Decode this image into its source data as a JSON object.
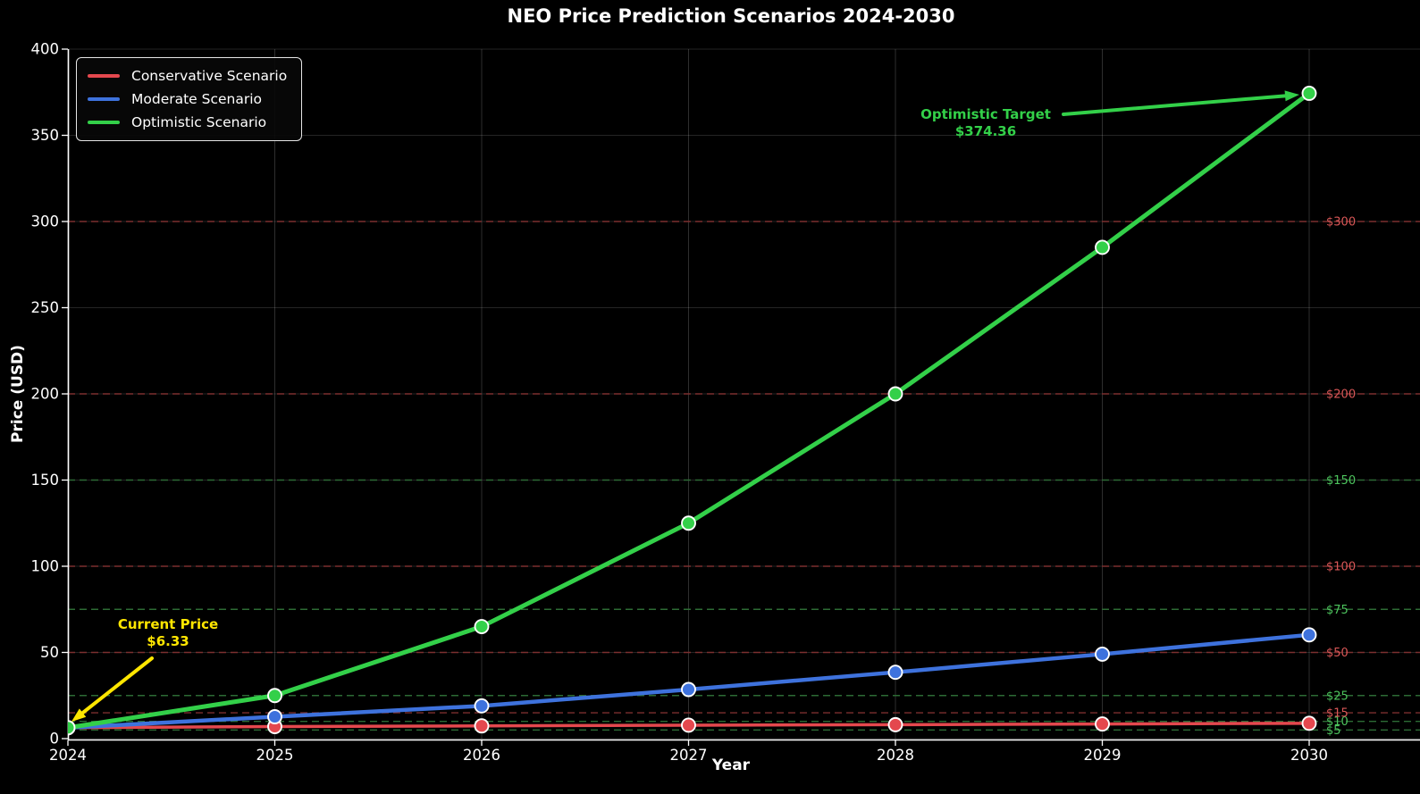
{
  "chart_data": {
    "type": "line",
    "title": "NEO Price Prediction Scenarios 2024-2030",
    "xlabel": "Year",
    "ylabel": "Price (USD)",
    "x": [
      2024,
      2025,
      2026,
      2027,
      2028,
      2029,
      2030
    ],
    "ylim": [
      0,
      400
    ],
    "yticks": [
      0,
      50,
      100,
      150,
      200,
      250,
      300,
      350,
      400
    ],
    "grid": true,
    "legend_position": "upper left",
    "background": "#000000",
    "series": [
      {
        "name": "Conservative Scenario",
        "color": "#e4484e",
        "values": [
          6.33,
          7.0,
          7.4,
          7.8,
          8.1,
          8.5,
          8.9
        ]
      },
      {
        "name": "Moderate Scenario",
        "color": "#3e72dd",
        "values": [
          6.33,
          12.7,
          19.0,
          28.5,
          38.5,
          49.0,
          60.2
        ]
      },
      {
        "name": "Optimistic Scenario",
        "color": "#33d049",
        "values": [
          6.33,
          25.0,
          65.0,
          125.0,
          200.0,
          285.0,
          374.36
        ]
      }
    ],
    "levels": [
      {
        "label": "$5",
        "value": 5,
        "kind": "support"
      },
      {
        "label": "$10",
        "value": 10,
        "kind": "support"
      },
      {
        "label": "$15",
        "value": 15,
        "kind": "resistance"
      },
      {
        "label": "$25",
        "value": 25,
        "kind": "support"
      },
      {
        "label": "$50",
        "value": 50,
        "kind": "resistance"
      },
      {
        "label": "$75",
        "value": 75,
        "kind": "support"
      },
      {
        "label": "$100",
        "value": 100,
        "kind": "resistance"
      },
      {
        "label": "$150",
        "value": 150,
        "kind": "support"
      },
      {
        "label": "$200",
        "value": 200,
        "kind": "resistance"
      },
      {
        "label": "$300",
        "value": 300,
        "kind": "resistance"
      }
    ],
    "level_colors": {
      "support_line": "#2d6b35",
      "support_label": "#4dc45d",
      "resistance_line": "#7c2f2f",
      "resistance_label": "#d95757"
    },
    "annotations": {
      "current_price": {
        "label": "Current Price",
        "value": "$6.33",
        "color": "#ffe600"
      },
      "optimistic_target": {
        "label": "Optimistic Target",
        "value": "$374.36",
        "color": "#33d049"
      }
    }
  }
}
